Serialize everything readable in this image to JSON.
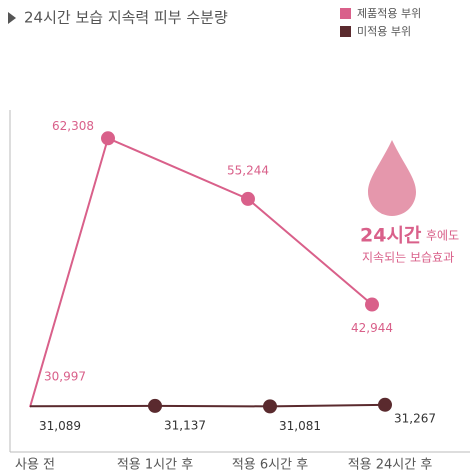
{
  "chart_data": {
    "type": "line",
    "title": "24시간 보습 지속력 피부 수분량",
    "categories": [
      "사용 전",
      "적용 1시간 후",
      "적용 6시간 후",
      "적용 24시간 후"
    ],
    "series": [
      {
        "name": "제품적용 부위",
        "color": "#d9608a",
        "values": [
          30997,
          62308,
          55244,
          42944
        ],
        "value_labels": [
          "30,997",
          "62,308",
          "55,244",
          "42,944"
        ]
      },
      {
        "name": "미적용 부위",
        "color": "#5a2a2e",
        "values": [
          31089,
          31137,
          31081,
          31267
        ],
        "value_labels": [
          "31,089",
          "31,137",
          "31,081",
          "31,267"
        ]
      }
    ],
    "ylim": [
      26000,
      67000
    ],
    "annotation": {
      "highlight": "24시간",
      "rest": "후에도",
      "line2": "지속되는 보습효과"
    },
    "legend": "top-right"
  }
}
